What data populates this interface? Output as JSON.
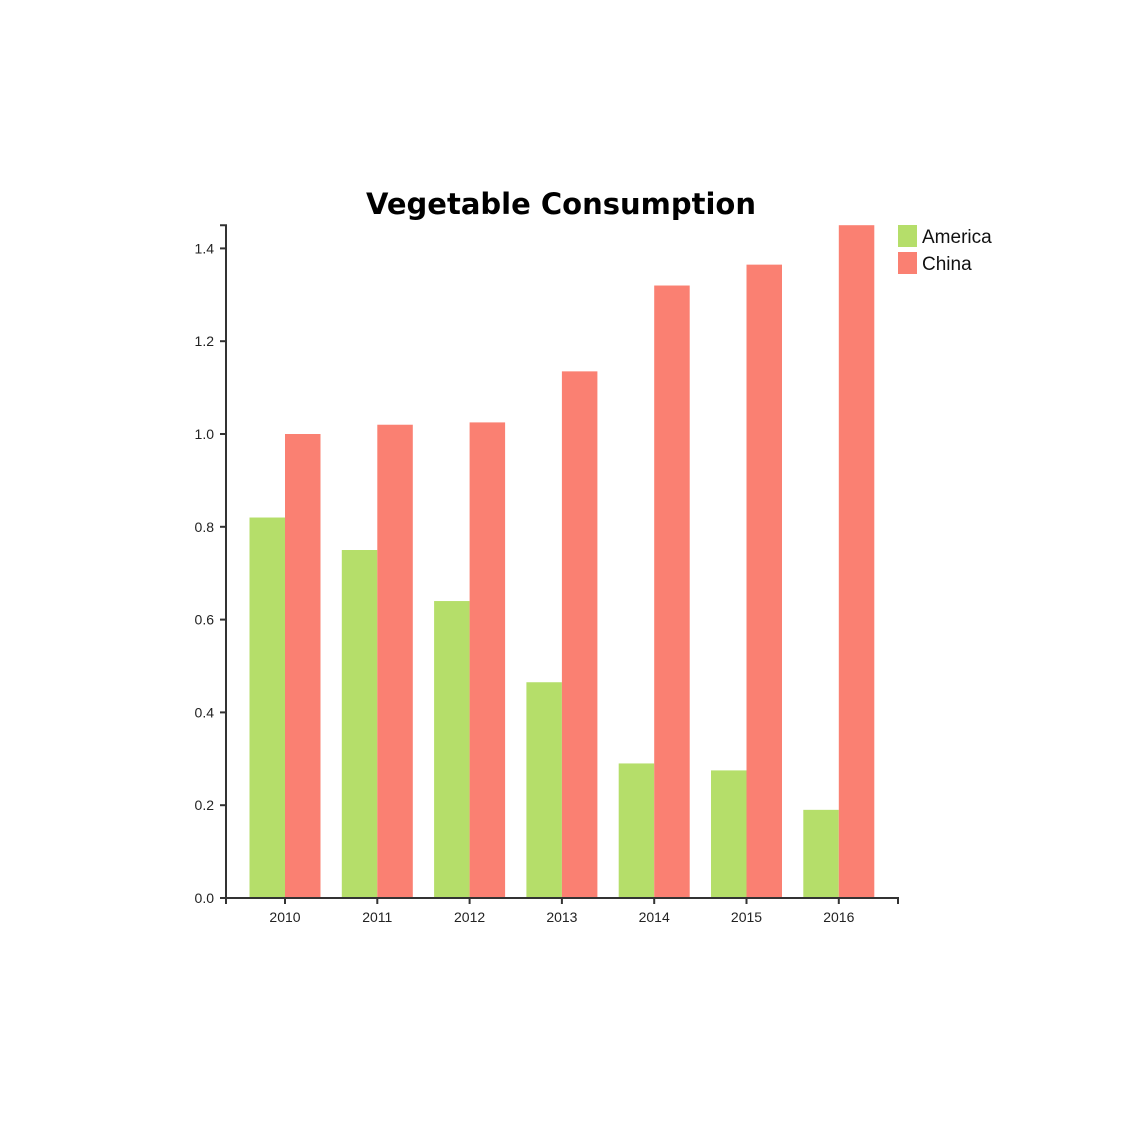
{
  "chart_data": {
    "type": "bar",
    "title": "Vegetable Consumption",
    "xlabel": "",
    "ylabel": "",
    "categories": [
      "2010",
      "2011",
      "2012",
      "2013",
      "2014",
      "2015",
      "2016"
    ],
    "series": [
      {
        "name": "America",
        "color": "#b5de6a",
        "values": [
          0.82,
          0.75,
          0.64,
          0.465,
          0.29,
          0.275,
          0.19
        ]
      },
      {
        "name": "China",
        "color": "#fa8072",
        "values": [
          1.0,
          1.02,
          1.025,
          1.135,
          1.32,
          1.365,
          1.45
        ]
      }
    ],
    "ylim": [
      0,
      1.45
    ],
    "yticks": [
      "0.0",
      "0.2",
      "0.4",
      "0.6",
      "0.8",
      "1.0",
      "1.2",
      "1.4"
    ],
    "grid": false,
    "legend_position": "top-right"
  }
}
